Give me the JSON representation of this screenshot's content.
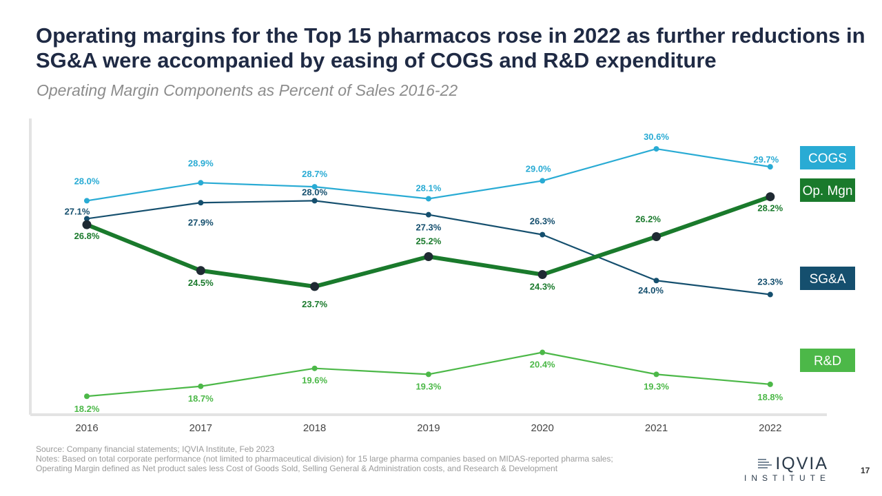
{
  "slide": {
    "title": "Operating margins for the Top 15 pharmacos rose in 2022 as further reductions in SG&A were accompanied by easing of COGS and R&D expenditure",
    "subtitle": "Operating Margin Components as Percent of Sales 2016-22",
    "source": "Source: Company financial statements; IQVIA Institute, Feb 2023",
    "notes_line1": "Notes: Based on total corporate performance (not limited to pharmaceutical division) for 15 large pharma companies based on MIDAS-reported pharma sales;",
    "notes_line2": "Operating Margin defined as Net product sales less Cost of Goods Sold, Selling General & Administration costs, and Research & Development",
    "logo_text": "IQVIA",
    "logo_subtext": "INSTITUTE",
    "page_number": "17"
  },
  "chart_data": {
    "type": "line",
    "x": [
      "2016",
      "2017",
      "2018",
      "2019",
      "2020",
      "2021",
      "2022"
    ],
    "y_range": [
      17,
      31.5
    ],
    "grid": false,
    "legend": "right, labels at line ends",
    "series": [
      {
        "name": "COGS",
        "color": "#29abd4",
        "values": [
          28.0,
          28.9,
          28.7,
          28.1,
          29.0,
          30.6,
          29.7
        ],
        "labels": [
          "28.0%",
          "28.9%",
          "28.7%",
          "28.1%",
          "29.0%",
          "30.6%",
          "29.7%"
        ]
      },
      {
        "name": "Op. Mgn",
        "color": "#1a7a2c",
        "values": [
          26.8,
          24.5,
          23.7,
          25.2,
          24.3,
          26.2,
          28.2
        ],
        "labels": [
          "26.8%",
          "24.5%",
          "23.7%",
          "25.2%",
          "24.3%",
          "26.2%",
          "28.2%"
        ]
      },
      {
        "name": "SG&A",
        "color": "#154f6e",
        "values": [
          27.1,
          27.9,
          28.0,
          27.3,
          26.3,
          24.0,
          23.3
        ],
        "labels": [
          "27.1%",
          "27.9%",
          "28.0%",
          "27.3%",
          "26.3%",
          "24.0%",
          "23.3%"
        ]
      },
      {
        "name": "R&D",
        "color": "#4cb848",
        "values": [
          18.2,
          18.7,
          19.6,
          19.3,
          20.4,
          19.3,
          18.8
        ],
        "labels": [
          "18.2%",
          "18.7%",
          "19.6%",
          "19.3%",
          "20.4%",
          "19.3%",
          "18.8%"
        ]
      }
    ]
  }
}
